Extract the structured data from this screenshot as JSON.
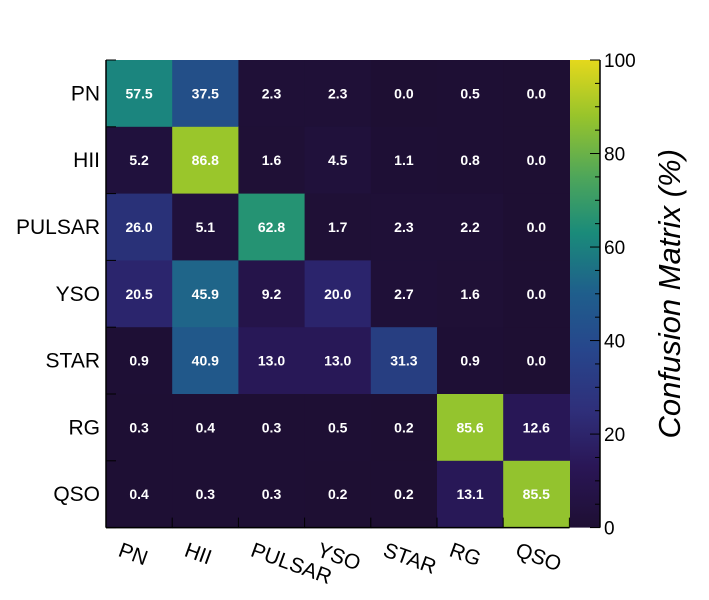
{
  "chart_data": {
    "type": "heatmap",
    "title": "",
    "xlabel": "",
    "ylabel": "",
    "x_categories": [
      "PN",
      "HII",
      "PULSAR",
      "YSO",
      "STAR",
      "RG",
      "QSO"
    ],
    "y_categories": [
      "PN",
      "HII",
      "PULSAR",
      "YSO",
      "STAR",
      "RG",
      "QSO"
    ],
    "values": [
      [
        57.5,
        37.5,
        2.3,
        2.3,
        0.0,
        0.5,
        0.0
      ],
      [
        5.2,
        86.8,
        1.6,
        4.5,
        1.1,
        0.8,
        0.0
      ],
      [
        26.0,
        5.1,
        62.8,
        1.7,
        2.3,
        2.2,
        0.0
      ],
      [
        20.5,
        45.9,
        9.2,
        20.0,
        2.7,
        1.6,
        0.0
      ],
      [
        0.9,
        40.9,
        13.0,
        13.0,
        31.3,
        0.9,
        0.0
      ],
      [
        0.3,
        0.4,
        0.3,
        0.5,
        0.2,
        85.6,
        12.6
      ],
      [
        0.4,
        0.3,
        0.3,
        0.2,
        0.2,
        13.1,
        85.5
      ]
    ],
    "colorbar": {
      "title": "Confusion Matrix (%)",
      "range": [
        0,
        100
      ],
      "ticks": [
        0,
        20,
        40,
        60,
        80,
        100
      ],
      "colormap": "viridis"
    },
    "grid": false
  }
}
